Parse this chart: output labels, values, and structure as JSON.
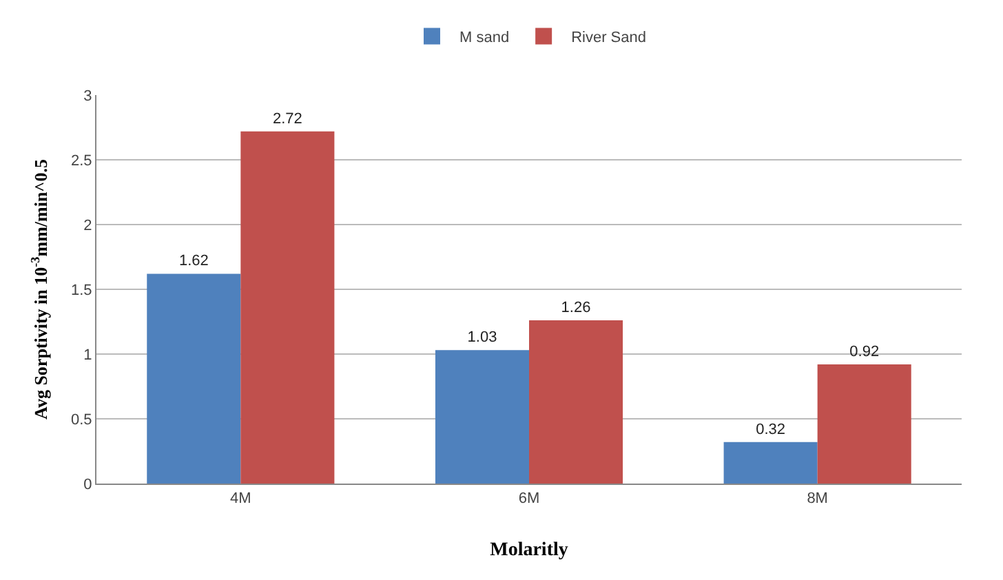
{
  "chart_data": {
    "type": "bar",
    "xlabel": "Molaritly",
    "ylabel": "Avg Sorptivity in 10$^{-3}$mm/min^0.5",
    "categories": [
      "4M",
      "6M",
      "8M"
    ],
    "series": [
      {
        "name": "M sand",
        "color": "#4f81bd",
        "values": [
          1.62,
          1.03,
          0.32
        ]
      },
      {
        "name": "River Sand",
        "color": "#c0504d",
        "values": [
          2.72,
          1.26,
          0.92
        ]
      }
    ],
    "ylim": [
      0,
      3
    ],
    "yticks": [
      0,
      0.5,
      1,
      1.5,
      2,
      2.5,
      3
    ],
    "grid": "y",
    "legend": "top",
    "data_labels": true
  }
}
